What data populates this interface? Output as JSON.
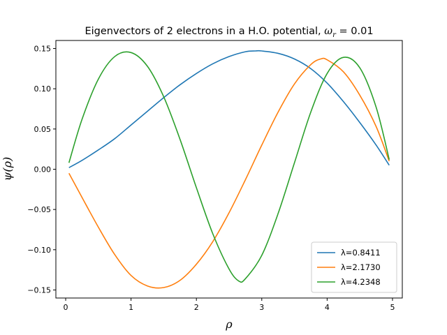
{
  "chart_data": {
    "type": "line",
    "title": "Eigenvectors of 2 electrons in a H.O. potential, ωr = 0.01",
    "xlabel": "ρ",
    "ylabel": "ψ(ρ)",
    "xlim": [
      -0.15,
      5.15
    ],
    "ylim": [
      -0.16,
      0.16
    ],
    "xticks": [
      0,
      1,
      2,
      3,
      4,
      5
    ],
    "yticks": [
      -0.15,
      -0.1,
      -0.05,
      0.0,
      0.05,
      0.1,
      0.15
    ],
    "xtick_labels": [
      "0",
      "1",
      "2",
      "3",
      "4",
      "5"
    ],
    "ytick_labels": [
      "−0.15",
      "−0.10",
      "−0.05",
      "0.00",
      "0.05",
      "0.10",
      "0.15"
    ],
    "grid": false,
    "legend_position": "lower-right",
    "series": [
      {
        "name": "λ=0.8411",
        "color": "#1f77b4",
        "x": [
          0.05,
          0.25,
          0.5,
          0.75,
          1.0,
          1.25,
          1.5,
          1.75,
          2.0,
          2.25,
          2.5,
          2.75,
          2.9,
          3.0,
          3.25,
          3.5,
          3.75,
          4.0,
          4.25,
          4.5,
          4.75,
          4.95
        ],
        "y": [
          0.002,
          0.011,
          0.024,
          0.038,
          0.055,
          0.072,
          0.089,
          0.105,
          0.119,
          0.131,
          0.14,
          0.146,
          0.147,
          0.147,
          0.144,
          0.137,
          0.125,
          0.107,
          0.084,
          0.058,
          0.03,
          0.005
        ]
      },
      {
        "name": "λ=2.1730",
        "color": "#ff7f0e",
        "x": [
          0.05,
          0.25,
          0.5,
          0.75,
          1.0,
          1.25,
          1.5,
          1.75,
          2.0,
          2.25,
          2.5,
          2.75,
          3.0,
          3.25,
          3.5,
          3.75,
          3.9,
          4.0,
          4.25,
          4.5,
          4.75,
          4.95
        ],
        "y": [
          -0.005,
          -0.035,
          -0.072,
          -0.106,
          -0.132,
          -0.145,
          -0.147,
          -0.138,
          -0.118,
          -0.09,
          -0.054,
          -0.013,
          0.03,
          0.071,
          0.106,
          0.13,
          0.137,
          0.136,
          0.121,
          0.092,
          0.053,
          0.01
        ]
      },
      {
        "name": "λ=4.2348",
        "color": "#2ca02c",
        "x": [
          0.05,
          0.25,
          0.5,
          0.75,
          1.0,
          1.25,
          1.5,
          1.75,
          2.0,
          2.25,
          2.5,
          2.65,
          2.75,
          3.0,
          3.25,
          3.5,
          3.75,
          4.0,
          4.25,
          4.5,
          4.75,
          4.95
        ],
        "y": [
          0.008,
          0.062,
          0.112,
          0.14,
          0.145,
          0.128,
          0.09,
          0.037,
          -0.023,
          -0.08,
          -0.124,
          -0.139,
          -0.136,
          -0.107,
          -0.055,
          0.008,
          0.071,
          0.119,
          0.139,
          0.126,
          0.077,
          0.012
        ]
      }
    ]
  }
}
